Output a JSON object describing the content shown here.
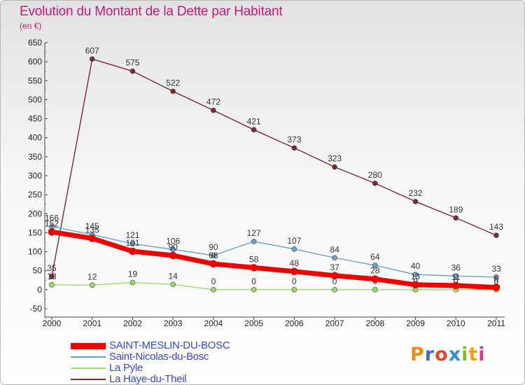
{
  "chart_data": {
    "type": "line",
    "title": "Evolution du Montant de la Dette par Habitant",
    "unit_label": "(en €)",
    "categories": [
      "2000",
      "2001",
      "2002",
      "2003",
      "2004",
      "2005",
      "2006",
      "2007",
      "2008",
      "2009",
      "2010",
      "2011"
    ],
    "ylim": [
      -50,
      650
    ],
    "yticks": [
      "-50",
      "0",
      "50",
      "100",
      "150",
      "200",
      "250",
      "300",
      "350",
      "400",
      "450",
      "500",
      "550",
      "600",
      "650"
    ],
    "grid": false,
    "legend_position": "bottom-left",
    "series": [
      {
        "name": "SAINT-MESLIN-DU-BOSC",
        "color": "#ee0000",
        "values": [
          152,
          135,
          101,
          90,
          68,
          58,
          48,
          37,
          28,
          13,
          11,
          6
        ],
        "labels": [
          "152",
          "135",
          "101",
          "90",
          "68",
          "58",
          "48",
          "37",
          "28",
          "13",
          "11",
          "6"
        ]
      },
      {
        "name": "Saint-Nicolas-du-Bosc",
        "color": "#6aa0cc",
        "values": [
          166,
          145,
          121,
          106,
          90,
          127,
          107,
          84,
          64,
          40,
          36,
          33
        ],
        "labels": [
          "166",
          "145",
          "121",
          "106",
          "90",
          "127",
          "107",
          "84",
          "64",
          "40",
          "36",
          "33"
        ]
      },
      {
        "name": "La Pyle",
        "color": "#99dd66",
        "values": [
          13,
          12,
          19,
          14,
          0,
          0,
          0,
          0,
          0,
          0,
          0,
          0
        ],
        "labels": [
          "13",
          "12",
          "19",
          "14",
          "0",
          "0",
          "0",
          "0",
          "0",
          "0",
          "0",
          "0"
        ]
      },
      {
        "name": "La Haye-du-Theil",
        "color": "#7a2a33",
        "values": [
          35,
          607,
          575,
          522,
          472,
          421,
          373,
          323,
          280,
          232,
          189,
          143
        ],
        "labels": [
          "35",
          "607",
          "575",
          "522",
          "472",
          "421",
          "373",
          "323",
          "280",
          "232",
          "189",
          "143"
        ]
      }
    ]
  },
  "logo": {
    "letters": [
      "P",
      "r",
      "o",
      "x",
      "i",
      "t",
      "i"
    ],
    "colors": [
      "#f08a16",
      "#3a6fc6",
      "#e6462a",
      "#2d8fd6",
      "#7cbf2a",
      "#f0a018",
      "#d43b8c"
    ]
  }
}
